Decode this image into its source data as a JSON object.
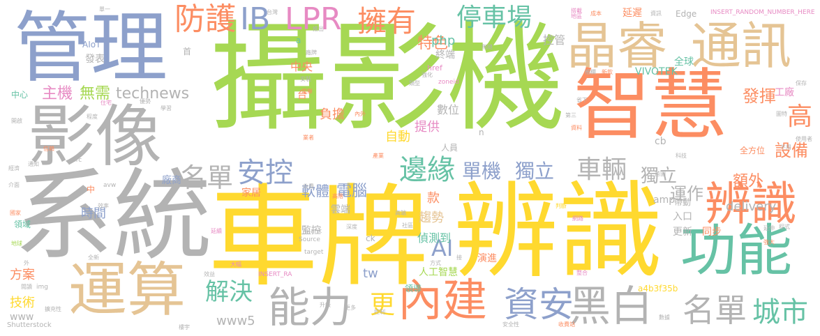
{
  "palette": {
    "green": "#a6d853",
    "orange": "#fc8d62",
    "blue": "#8da0cb",
    "tan": "#e5c494",
    "yellow": "#ffd92f",
    "pink": "#e78ac3",
    "teal": "#66c2a5",
    "gray": "#b3b3b3"
  },
  "words": [
    {
      "text": "攝影機",
      "color": "green"
    },
    {
      "text": "車牌",
      "color": "yellow"
    },
    {
      "text": "辨識",
      "color": "yellow"
    },
    {
      "text": "系統",
      "color": "gray"
    },
    {
      "text": "管理",
      "color": "blue"
    },
    {
      "text": "智慧",
      "color": "orange"
    },
    {
      "text": "影像",
      "color": "gray"
    },
    {
      "text": "晶睿",
      "color": "tan"
    },
    {
      "text": "通訊",
      "color": "tan"
    },
    {
      "text": "運算",
      "color": "tan"
    },
    {
      "text": "功能",
      "color": "teal"
    },
    {
      "text": "辨識",
      "color": "orange"
    },
    {
      "text": "內建",
      "color": "orange"
    },
    {
      "text": "能力",
      "color": "gray"
    },
    {
      "text": "黑白",
      "color": "gray"
    },
    {
      "text": "名單",
      "color": "gray"
    },
    {
      "text": "城市",
      "color": "teal"
    },
    {
      "text": "資安",
      "color": "blue"
    },
    {
      "text": "防護",
      "color": "orange"
    },
    {
      "text": "IB",
      "color": "blue"
    },
    {
      "text": "LPR",
      "color": "pink"
    },
    {
      "text": "擁有",
      "color": "orange"
    },
    {
      "text": "停車場",
      "color": "teal"
    },
    {
      "text": "邊緣",
      "color": "teal"
    },
    {
      "text": "車輛",
      "color": "gray"
    },
    {
      "text": "安控",
      "color": "blue"
    },
    {
      "text": "名單",
      "color": "gray"
    },
    {
      "text": "單機",
      "color": "blue"
    },
    {
      "text": "獨立",
      "color": "blue"
    },
    {
      "text": "解決",
      "color": "teal"
    },
    {
      "text": "AI",
      "color": "blue"
    },
    {
      "text": "更",
      "color": "yellow"
    },
    {
      "text": "高",
      "color": "orange"
    },
    {
      "text": "特色",
      "color": "orange"
    },
    {
      "text": "主機",
      "color": "pink"
    },
    {
      "text": "無需",
      "color": "green"
    },
    {
      "text": "technews",
      "color": "gray"
    },
    {
      "text": "獨立",
      "color": "gray"
    },
    {
      "text": "運作",
      "color": "gray"
    },
    {
      "text": "設備",
      "color": "orange"
    },
    {
      "text": "電腦",
      "color": "blue"
    },
    {
      "text": "軟體",
      "color": "blue"
    },
    {
      "text": "額外",
      "color": "orange"
    },
    {
      "text": "delivery",
      "color": "gray"
    },
    {
      "text": "發揮",
      "color": "orange"
    },
    {
      "text": "提供",
      "color": "pink"
    },
    {
      "text": "數位",
      "color": "gray"
    },
    {
      "text": "自動",
      "color": "yellow"
    },
    {
      "text": "php",
      "color": "teal"
    },
    {
      "text": "中央",
      "color": "orange"
    },
    {
      "text": "負擔",
      "color": "orange"
    },
    {
      "text": "控管",
      "color": "gray"
    },
    {
      "text": "全球",
      "color": "teal"
    },
    {
      "text": "終端",
      "color": "gray"
    },
    {
      "text": "VIVOTEK",
      "color": "teal"
    },
    {
      "text": "工廠",
      "color": "pink"
    },
    {
      "text": "時間",
      "color": "blue"
    },
    {
      "text": "方案",
      "color": "orange"
    },
    {
      "text": "技術",
      "color": "yellow"
    },
    {
      "text": "家居",
      "color": "orange"
    },
    {
      "text": "雲端",
      "color": "gray"
    },
    {
      "text": "監控",
      "color": "gray"
    },
    {
      "text": "趨勢",
      "color": "tan"
    },
    {
      "text": "偵測到",
      "color": "teal"
    },
    {
      "text": "款",
      "color": "orange"
    },
    {
      "text": "人工智慧",
      "color": "green"
    },
    {
      "text": "演進",
      "color": "orange"
    },
    {
      "text": "領導",
      "color": "teal"
    },
    {
      "text": "www5",
      "color": "gray"
    },
    {
      "text": "www",
      "color": "gray"
    },
    {
      "text": "tw",
      "color": "blue"
    },
    {
      "text": "amp",
      "color": "gray"
    },
    {
      "text": "更新",
      "color": "gray"
    },
    {
      "text": "同步",
      "color": "orange"
    },
    {
      "text": "入口",
      "color": "gray"
    },
    {
      "text": "帶動",
      "color": "gray"
    },
    {
      "text": "a4b3f35b",
      "color": "yellow"
    },
    {
      "text": "廠商",
      "color": "blue"
    },
    {
      "text": "cb",
      "color": "gray"
    },
    {
      "text": "人員",
      "color": "gray"
    },
    {
      "text": "全方位",
      "color": "orange"
    },
    {
      "text": "發表",
      "color": "gray"
    },
    {
      "text": "AIoT",
      "color": "blue"
    },
    {
      "text": "中心",
      "color": "teal"
    },
    {
      "text": "Edge",
      "color": "gray"
    },
    {
      "text": "延遲",
      "color": "orange"
    },
    {
      "text": "INSERT_RANDOM_NUMBER_HERE",
      "color": "pink"
    },
    {
      "text": "INSERT_RA",
      "color": "pink"
    },
    {
      "text": "Shutterstock",
      "color": "gray"
    },
    {
      "text": "Source",
      "color": "gray"
    },
    {
      "text": "_blank",
      "color": "gray"
    },
    {
      "text": "target",
      "color": "gray"
    },
    {
      "text": "href",
      "color": "pink"
    },
    {
      "text": "zoneid",
      "color": "pink"
    },
    {
      "text": "ck",
      "color": "gray"
    },
    {
      "text": "src",
      "color": "gray"
    },
    {
      "text": "img",
      "color": "gray"
    },
    {
      "text": "avw",
      "color": "gray"
    },
    {
      "text": "API",
      "color": "gray"
    },
    {
      "text": "首",
      "color": "gray"
    },
    {
      "text": "台",
      "color": "orange"
    },
    {
      "text": "中",
      "color": "orange"
    },
    {
      "text": "a",
      "color": "teal"
    },
    {
      "text": "n",
      "color": "gray"
    },
    {
      "text": "單一",
      "color": "gray"
    },
    {
      "text": "台灣",
      "color": "gray"
    },
    {
      "text": "推出",
      "color": "gray"
    },
    {
      "text": "搭載",
      "color": "pink"
    },
    {
      "text": "地區",
      "color": "pink"
    },
    {
      "text": "成本",
      "color": "orange"
    },
    {
      "text": "資訊",
      "color": "gray"
    },
    {
      "text": "無縫",
      "color": "gray"
    },
    {
      "text": "強化",
      "color": "gray"
    },
    {
      "text": "內外",
      "color": "orange"
    },
    {
      "text": "類型",
      "color": "gray"
    },
    {
      "text": "優勢",
      "color": "gray"
    },
    {
      "text": "學習",
      "color": "gray"
    },
    {
      "text": "柵欄",
      "color": "gray"
    },
    {
      "text": "新款",
      "color": "orange"
    },
    {
      "text": "廠牌",
      "color": "gray"
    },
    {
      "text": "安裝",
      "color": "gray"
    },
    {
      "text": "電擊",
      "color": "orange"
    },
    {
      "text": "判斷",
      "color": "yellow"
    },
    {
      "text": "開啟",
      "color": "gray"
    },
    {
      "text": "通知",
      "color": "gray"
    },
    {
      "text": "程度",
      "color": "gray"
    },
    {
      "text": "經濟",
      "color": "gray"
    },
    {
      "text": "住宅",
      "color": "pink"
    },
    {
      "text": "介面",
      "color": "gray"
    },
    {
      "text": "領域",
      "color": "teal"
    },
    {
      "text": "國家",
      "color": "orange"
    },
    {
      "text": "地球",
      "color": "green"
    },
    {
      "text": "閱讀",
      "color": "gray"
    },
    {
      "text": "擴充性",
      "color": "gray"
    },
    {
      "text": "效率",
      "color": "gray"
    },
    {
      "text": "延續",
      "color": "pink"
    },
    {
      "text": "使用者",
      "color": "gray"
    },
    {
      "text": "程式",
      "color": "gray"
    },
    {
      "text": "延伸",
      "color": "gray"
    },
    {
      "text": "保存",
      "color": "gray"
    },
    {
      "text": "第三",
      "color": "gray"
    },
    {
      "text": "省下",
      "color": "gray"
    },
    {
      "text": "資料",
      "color": "orange"
    },
    {
      "text": "科技",
      "color": "gray"
    },
    {
      "text": "網路",
      "color": "pink"
    },
    {
      "text": "收費站",
      "color": "orange"
    },
    {
      "text": "安全性",
      "color": "gray"
    },
    {
      "text": "數據",
      "color": "gray"
    },
    {
      "text": "升級",
      "color": "gray"
    },
    {
      "text": "更多",
      "color": "gray"
    },
    {
      "text": "整合",
      "color": "pink"
    },
    {
      "text": "方式",
      "color": "gray"
    },
    {
      "text": "業者",
      "color": "orange"
    },
    {
      "text": "產業",
      "color": "orange"
    },
    {
      "text": "深度",
      "color": "gray"
    },
    {
      "text": "社區",
      "color": "gray"
    },
    {
      "text": "高端",
      "color": "gray"
    },
    {
      "text": "收費",
      "color": "gray"
    },
    {
      "text": "高階",
      "color": "orange"
    },
    {
      "text": "效益",
      "color": "gray"
    },
    {
      "text": "大幅",
      "color": "pink"
    },
    {
      "text": "控制",
      "color": "gray"
    },
    {
      "text": "接",
      "color": "gray"
    },
    {
      "text": "外",
      "color": "gray"
    },
    {
      "text": "全新",
      "color": "gray"
    },
    {
      "text": "強大",
      "color": "orange"
    },
    {
      "text": "信賴",
      "color": "orange"
    },
    {
      "text": "首圖",
      "color": "gray"
    },
    {
      "text": "不用",
      "color": "gray"
    },
    {
      "text": "樓宇",
      "color": "gray"
    },
    {
      "text": "圖特",
      "color": "gray"
    }
  ]
}
